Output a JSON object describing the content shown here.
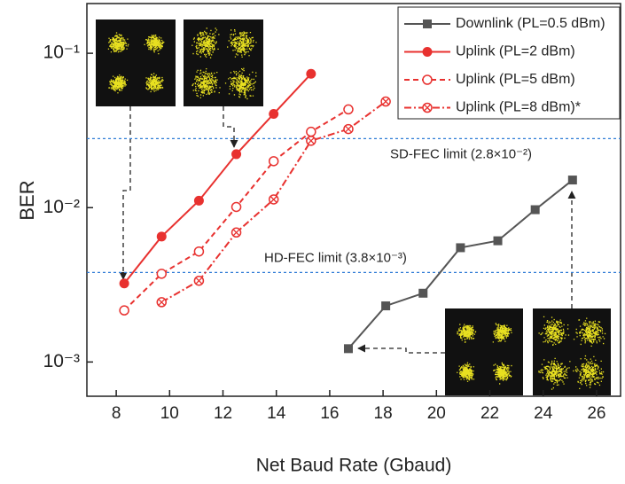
{
  "chart_data": {
    "type": "line",
    "x_label": "Net Baud Rate (Gbaud)",
    "y_label": "BER",
    "xlim": [
      6.9,
      26.9
    ],
    "xticks": [
      8,
      10,
      12,
      14,
      16,
      18,
      20,
      22,
      24,
      26
    ],
    "ylim": [
      0.0006,
      0.21
    ],
    "log_y": true,
    "yticks": [
      {
        "value": 0.001,
        "label": "10⁻³"
      },
      {
        "value": 0.01,
        "label": "10⁻²"
      },
      {
        "value": 0.1,
        "label": "10⁻¹"
      }
    ],
    "legend": "upper right",
    "series": [
      {
        "name": "Downlink (PL=0.5 dBm)",
        "color": "#555555",
        "marker": "square",
        "dash": "solid",
        "x": [
          16.7,
          18.1,
          19.5,
          20.9,
          22.3,
          23.7,
          25.1
        ],
        "values": [
          0.00122,
          0.00231,
          0.00279,
          0.0055,
          0.0061,
          0.0097,
          0.0151
        ]
      },
      {
        "name": "Uplink (PL=2 dBm)",
        "color": "#e8312f",
        "marker": "circle",
        "dash": "solid",
        "x": [
          8.3,
          9.7,
          11.1,
          12.5,
          13.9,
          15.3
        ],
        "values": [
          0.00323,
          0.0065,
          0.0111,
          0.0222,
          0.0405,
          0.0736
        ]
      },
      {
        "name": "Uplink (PL=5 dBm)",
        "color": "#e8312f",
        "marker": "open-circle",
        "dash": "dashed",
        "x": [
          8.3,
          9.7,
          11.1,
          12.5,
          13.9,
          15.3,
          16.7
        ],
        "values": [
          0.00216,
          0.00373,
          0.0052,
          0.0101,
          0.02,
          0.031,
          0.0433
        ]
      },
      {
        "name": "Uplink (PL=8 dBm)*",
        "color": "#e8312f",
        "marker": "crossed-circle",
        "dash": "dashdot",
        "x": [
          9.7,
          11.1,
          12.5,
          13.9,
          15.3,
          16.7,
          18.1
        ],
        "values": [
          0.00244,
          0.00336,
          0.0069,
          0.0113,
          0.0271,
          0.0323,
          0.0487
        ]
      }
    ],
    "reference_lines": [
      {
        "text": "SD-FEC limit (2.8×10⁻²)",
        "value": 0.028,
        "color": "#2e7bd6",
        "text_color": "#8a2be2"
      },
      {
        "text": "HD-FEC limit (3.8×10⁻³)",
        "value": 0.0038,
        "color": "#2e7bd6",
        "text_color": "#8a2be2"
      }
    ]
  }
}
